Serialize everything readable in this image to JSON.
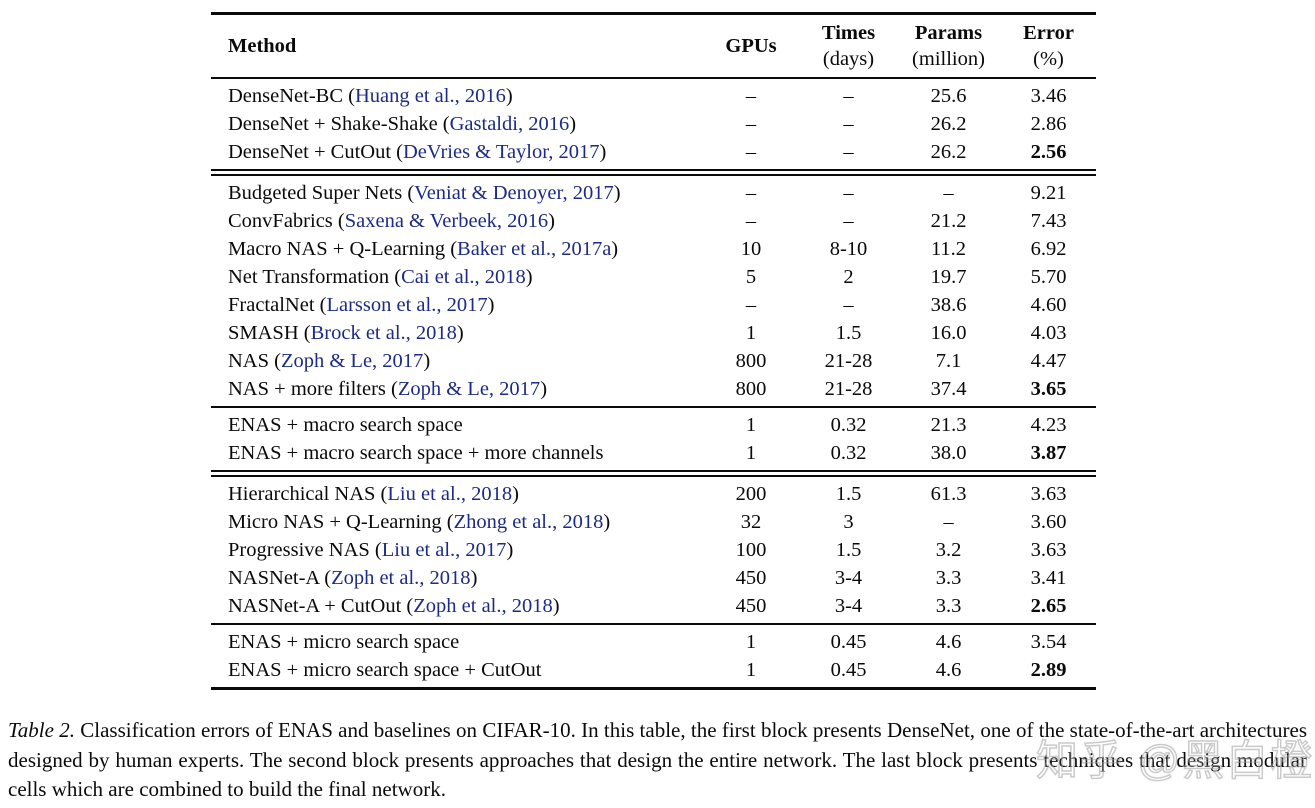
{
  "colors": {
    "citation_blue": "#1d2b84",
    "text_black": "#0a0a0a",
    "watermark_gray": "#9e9e9e",
    "background": "#ffffff"
  },
  "table": {
    "headers": {
      "method": {
        "label": "Method"
      },
      "gpus": {
        "label": "GPUs"
      },
      "times": {
        "label": "Times",
        "sub": "(days)"
      },
      "params": {
        "label": "Params",
        "sub": "(million)"
      },
      "error": {
        "label": "Error",
        "sub": "(%)"
      }
    },
    "separators_after_block": [
      "double",
      "single",
      "double",
      "single"
    ],
    "blocks": [
      {
        "rows": [
          {
            "pre": "DenseNet-BC (",
            "cite": "Huang et al., 2016",
            "post": ")",
            "gpus": "–",
            "times": "–",
            "params": "25.6",
            "error": "3.46",
            "bold_error": false
          },
          {
            "pre": "DenseNet + Shake-Shake (",
            "cite": "Gastaldi, 2016",
            "post": ")",
            "gpus": "–",
            "times": "–",
            "params": "26.2",
            "error": "2.86",
            "bold_error": false
          },
          {
            "pre": "DenseNet + CutOut (",
            "cite": "DeVries & Taylor, 2017",
            "post": ")",
            "gpus": "–",
            "times": "–",
            "params": "26.2",
            "error": "2.56",
            "bold_error": true
          }
        ]
      },
      {
        "rows": [
          {
            "pre": "Budgeted Super Nets (",
            "cite": "Veniat & Denoyer, 2017",
            "post": ")",
            "gpus": "–",
            "times": "–",
            "params": "–",
            "error": "9.21",
            "bold_error": false
          },
          {
            "pre": "ConvFabrics (",
            "cite": "Saxena & Verbeek, 2016",
            "post": ")",
            "gpus": "–",
            "times": "–",
            "params": "21.2",
            "error": "7.43",
            "bold_error": false
          },
          {
            "pre": "Macro NAS + Q-Learning (",
            "cite": "Baker et al., 2017a",
            "post": ")",
            "gpus": "10",
            "times": "8-10",
            "params": "11.2",
            "error": "6.92",
            "bold_error": false
          },
          {
            "pre": "Net Transformation (",
            "cite": "Cai et al., 2018",
            "post": ")",
            "gpus": "5",
            "times": "2",
            "params": "19.7",
            "error": "5.70",
            "bold_error": false
          },
          {
            "pre": "FractalNet (",
            "cite": "Larsson et al., 2017",
            "post": ")",
            "gpus": "–",
            "times": "–",
            "params": "38.6",
            "error": "4.60",
            "bold_error": false
          },
          {
            "pre": "SMASH (",
            "cite": "Brock et al., 2018",
            "post": ")",
            "gpus": "1",
            "times": "1.5",
            "params": "16.0",
            "error": "4.03",
            "bold_error": false
          },
          {
            "pre": "NAS (",
            "cite": "Zoph & Le, 2017",
            "post": ")",
            "gpus": "800",
            "times": "21-28",
            "params": "7.1",
            "error": "4.47",
            "bold_error": false
          },
          {
            "pre": "NAS + more filters (",
            "cite": "Zoph & Le, 2017",
            "post": ")",
            "gpus": "800",
            "times": "21-28",
            "params": "37.4",
            "error": "3.65",
            "bold_error": true
          }
        ]
      },
      {
        "rows": [
          {
            "pre": "ENAS + macro search space",
            "cite": "",
            "post": "",
            "gpus": "1",
            "times": "0.32",
            "params": "21.3",
            "error": "4.23",
            "bold_error": false
          },
          {
            "pre": "ENAS + macro search space + more channels",
            "cite": "",
            "post": "",
            "gpus": "1",
            "times": "0.32",
            "params": "38.0",
            "error": "3.87",
            "bold_error": true
          }
        ]
      },
      {
        "rows": [
          {
            "pre": "Hierarchical NAS (",
            "cite": "Liu et al., 2018",
            "post": ")",
            "gpus": "200",
            "times": "1.5",
            "params": "61.3",
            "error": "3.63",
            "bold_error": false
          },
          {
            "pre": "Micro NAS + Q-Learning (",
            "cite": "Zhong et al., 2018",
            "post": ")",
            "gpus": "32",
            "times": "3",
            "params": "–",
            "error": "3.60",
            "bold_error": false
          },
          {
            "pre": "Progressive NAS (",
            "cite": "Liu et al., 2017",
            "post": ")",
            "gpus": "100",
            "times": "1.5",
            "params": "3.2",
            "error": "3.63",
            "bold_error": false
          },
          {
            "pre": "NASNet-A (",
            "cite": "Zoph et al., 2018",
            "post": ")",
            "gpus": "450",
            "times": "3-4",
            "params": "3.3",
            "error": "3.41",
            "bold_error": false
          },
          {
            "pre": "NASNet-A + CutOut (",
            "cite": "Zoph et al., 2018",
            "post": ")",
            "gpus": "450",
            "times": "3-4",
            "params": "3.3",
            "error": "2.65",
            "bold_error": true
          }
        ]
      },
      {
        "rows": [
          {
            "pre": "ENAS + micro search space",
            "cite": "",
            "post": "",
            "gpus": "1",
            "times": "0.45",
            "params": "4.6",
            "error": "3.54",
            "bold_error": false
          },
          {
            "pre": "ENAS + micro search space + CutOut",
            "cite": "",
            "post": "",
            "gpus": "1",
            "times": "0.45",
            "params": "4.6",
            "error": "2.89",
            "bold_error": true
          }
        ]
      }
    ]
  },
  "caption": {
    "label": "Table 2.",
    "text": " Classification errors of ENAS and baselines on CIFAR-10. In this table, the first block presents DenseNet, one of the state-of-the-art architectures designed by human experts. The second block presents approaches that design the entire network. The last block presents techniques that design modular cells which are combined to build the final network."
  },
  "watermark": {
    "text": "知乎 @黑白橙"
  }
}
